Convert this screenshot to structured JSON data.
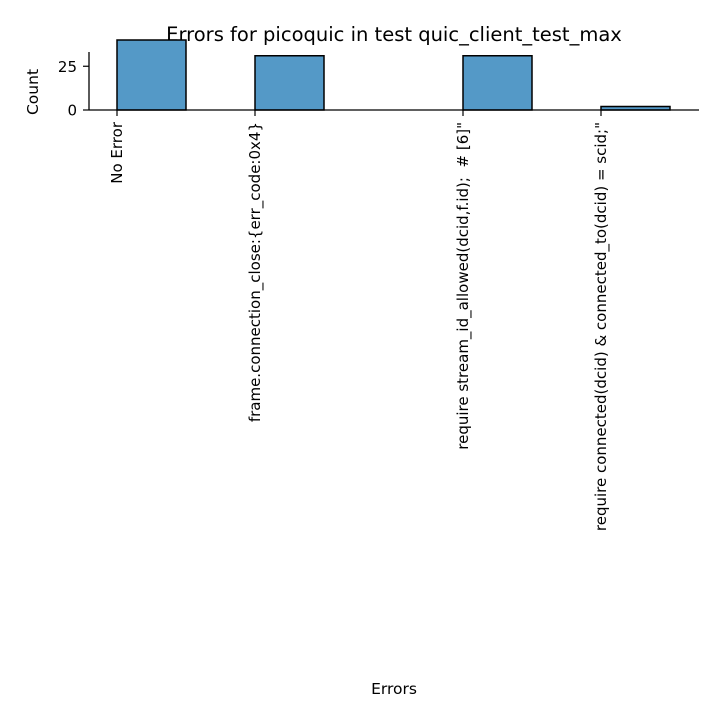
{
  "chart_data": {
    "type": "bar",
    "title": "Errors for picoquic in test quic_client_test_max",
    "xlabel": "Errors",
    "ylabel": "Count",
    "categories": [
      "No Error",
      "frame.connection_close:{err_code:0x4}",
      "require stream_id_allowed(dcid,f.id);  # [6]\"",
      "require connected(dcid) & connected_to(dcid) = scid;\""
    ],
    "values": [
      40,
      31,
      31,
      2
    ],
    "yticks": [
      0,
      25
    ],
    "ylim": [
      0,
      41
    ],
    "bar_color": "#5499c7",
    "edge_color": "#000000",
    "grid": false,
    "legend": "none"
  }
}
